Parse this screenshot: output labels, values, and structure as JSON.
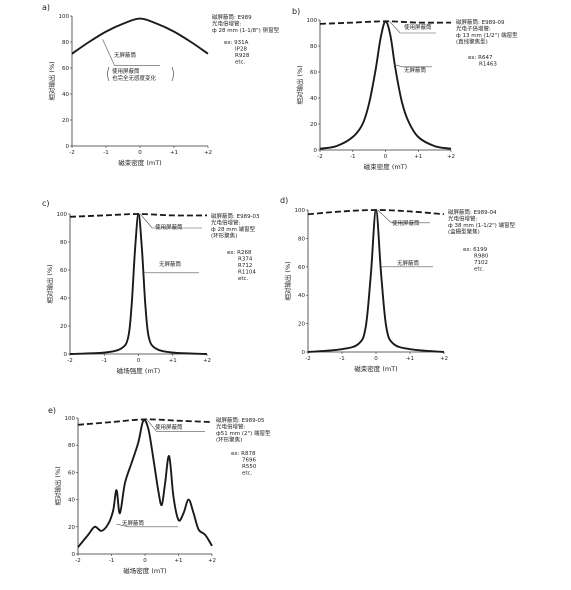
{
  "panels": [
    {
      "label": "a)",
      "xlabel": "磁束密度 (mT)",
      "ylabel": "相对输出 (%)",
      "xticks": [
        "-2",
        "-1",
        "0",
        "+1",
        "+2"
      ],
      "yticks": [
        "0",
        "20",
        "40",
        "60",
        "80",
        "100"
      ],
      "info": [
        "磁屏蔽筒: E989",
        "光电倍增管:",
        "ф 28 mm (1-1/8\") 侧窗型"
      ],
      "examples": [
        "ex: 931A",
        "IP28",
        "R928",
        "etc."
      ],
      "annotations": [
        {
          "lines": [
            "无屏蔽筒"
          ],
          "target": "unshielded"
        },
        {
          "lines": [
            "使用屏蔽筒",
            "也完全无感度变化"
          ],
          "bracket": true,
          "target": "shielded"
        }
      ]
    },
    {
      "label": "b)",
      "xlabel": "磁束密度 (mT)",
      "ylabel": "相对输出 (%)",
      "xticks": [
        "-2",
        "-1",
        "0",
        "+1",
        "+2"
      ],
      "yticks": [
        "0",
        "20",
        "40",
        "60",
        "80",
        "100"
      ],
      "info": [
        "磁屏蔽筒: E989-09",
        "光电子倍增管:",
        "ф 13 mm (1/2\") 端窗型",
        "(直线聚焦型)"
      ],
      "examples": [
        "ex: R647",
        "R1463"
      ],
      "annotations": [
        {
          "lines": [
            "使用屏蔽筒"
          ],
          "target": "shielded"
        },
        {
          "lines": [
            "无屏蔽筒"
          ],
          "target": "unshielded"
        }
      ]
    },
    {
      "label": "c)",
      "xlabel": "磁场强度 (mT)",
      "ylabel": "相对输出 (%)",
      "xticks": [
        "-2",
        "-1",
        "0",
        "+1",
        "+2"
      ],
      "yticks": [
        "0",
        "20",
        "40",
        "60",
        "80",
        "100"
      ],
      "info": [
        "磁屏蔽筒: E989-03",
        "光电倍增管:",
        "ф 28 mm 端窗型",
        "(环形聚焦)"
      ],
      "examples": [
        "ex: R268",
        "R374",
        "R712",
        "R1104",
        "etc."
      ],
      "annotations": [
        {
          "lines": [
            "使用屏蔽筒"
          ],
          "target": "shielded"
        },
        {
          "lines": [
            "无屏蔽筒"
          ],
          "target": "unshielded"
        }
      ]
    },
    {
      "label": "d)",
      "xlabel": "磁束密度 (mT)",
      "ylabel": "相对输出 (%)",
      "xticks": [
        "-2",
        "-1",
        "0",
        "+1",
        "+2"
      ],
      "yticks": [
        "0",
        "20",
        "40",
        "60",
        "80",
        "100"
      ],
      "info": [
        "磁屏蔽筒: E989-04",
        "光电倍增管:",
        "ф 38 mm (1-1/2\") 端窗型",
        "(盒栅型聚焦)"
      ],
      "examples": [
        "ex: 6199",
        "R980",
        "7102",
        "etc."
      ],
      "annotations": [
        {
          "lines": [
            "使用屏蔽筒"
          ],
          "target": "shielded"
        },
        {
          "lines": [
            "无屏蔽筒"
          ],
          "target": "unshielded"
        }
      ]
    },
    {
      "label": "e)",
      "xlabel": "磁场密度 (mT)",
      "ylabel": "相对输出 (%)",
      "xticks": [
        "-2",
        "-1",
        "0",
        "+1",
        "+2"
      ],
      "yticks": [
        "0",
        "20",
        "40",
        "60",
        "80",
        "100"
      ],
      "info": [
        "磁屏蔽筒: E989-05",
        "光电倍增管:",
        "ф51 mm (2\") 端窗型",
        "(环形聚焦)"
      ],
      "examples": [
        "ex: R878",
        "7696",
        "R550",
        "etc."
      ],
      "annotations": [
        {
          "lines": [
            "使用屏蔽筒"
          ],
          "target": "shielded"
        },
        {
          "lines": [
            "无屏蔽筒"
          ],
          "target": "unshielded"
        }
      ]
    }
  ],
  "chart_data": [
    {
      "type": "line",
      "panel": "a)",
      "xlim": [
        -2,
        2
      ],
      "ylim": [
        0,
        100
      ],
      "series": [
        {
          "style": "solid",
          "x": [
            -2,
            -1.5,
            -1,
            -0.5,
            0,
            0.5,
            1,
            1.5,
            2
          ],
          "y": [
            71,
            80,
            88,
            94,
            98,
            94,
            88,
            80,
            71
          ]
        }
      ]
    },
    {
      "type": "line",
      "panel": "b)",
      "xlim": [
        -2,
        2
      ],
      "ylim": [
        0,
        100
      ],
      "series": [
        {
          "style": "dashed",
          "x": [
            -2,
            -1,
            0,
            1,
            2
          ],
          "y": [
            97,
            98,
            99,
            98,
            98
          ]
        },
        {
          "style": "solid",
          "x": [
            -2,
            -1.5,
            -1,
            -0.7,
            -0.5,
            -0.3,
            -0.15,
            0,
            0.15,
            0.3,
            0.5,
            0.7,
            1,
            1.5,
            2
          ],
          "y": [
            1,
            3,
            10,
            20,
            36,
            62,
            86,
            99,
            88,
            63,
            37,
            22,
            10,
            3,
            1
          ]
        }
      ]
    },
    {
      "type": "line",
      "panel": "c)",
      "xlim": [
        -2,
        2
      ],
      "ylim": [
        0,
        100
      ],
      "series": [
        {
          "style": "dashed",
          "x": [
            -2,
            -1,
            0,
            1,
            2
          ],
          "y": [
            98,
            99,
            100,
            99,
            99
          ]
        },
        {
          "style": "solid",
          "x": [
            -2,
            -1,
            -0.5,
            -0.3,
            -0.2,
            -0.1,
            0,
            0.1,
            0.2,
            0.3,
            0.5,
            1,
            2
          ],
          "y": [
            0,
            1,
            4,
            12,
            35,
            75,
            100,
            75,
            35,
            12,
            4,
            1,
            0
          ]
        }
      ]
    },
    {
      "type": "line",
      "panel": "d)",
      "xlim": [
        -2,
        2
      ],
      "ylim": [
        0,
        100
      ],
      "series": [
        {
          "style": "dashed",
          "x": [
            -2,
            -1,
            0,
            1,
            2
          ],
          "y": [
            97,
            99,
            100,
            99,
            97
          ]
        },
        {
          "style": "solid",
          "x": [
            -2,
            -1,
            -0.5,
            -0.3,
            -0.15,
            0,
            0.15,
            0.3,
            0.5,
            1,
            2
          ],
          "y": [
            0,
            2,
            6,
            18,
            55,
            100,
            55,
            18,
            6,
            2,
            0
          ]
        }
      ]
    },
    {
      "type": "line",
      "panel": "e)",
      "xlim": [
        -2,
        2
      ],
      "ylim": [
        0,
        100
      ],
      "series": [
        {
          "style": "dashed",
          "x": [
            -2,
            -1,
            0,
            1,
            2
          ],
          "y": [
            95,
            97,
            99,
            98,
            97
          ]
        },
        {
          "style": "solid",
          "x": [
            -2,
            -1.7,
            -1.5,
            -1.3,
            -1.1,
            -0.95,
            -0.85,
            -0.75,
            -0.6,
            -0.4,
            -0.2,
            -0.05,
            0.1,
            0.25,
            0.4,
            0.5,
            0.6,
            0.72,
            0.85,
            1.0,
            1.15,
            1.3,
            1.45,
            1.6,
            1.8,
            2
          ],
          "y": [
            5,
            14,
            20,
            17,
            22,
            32,
            47,
            30,
            52,
            67,
            82,
            98,
            92,
            70,
            46,
            36,
            52,
            72,
            42,
            25,
            30,
            40,
            30,
            18,
            14,
            6
          ]
        }
      ]
    }
  ]
}
